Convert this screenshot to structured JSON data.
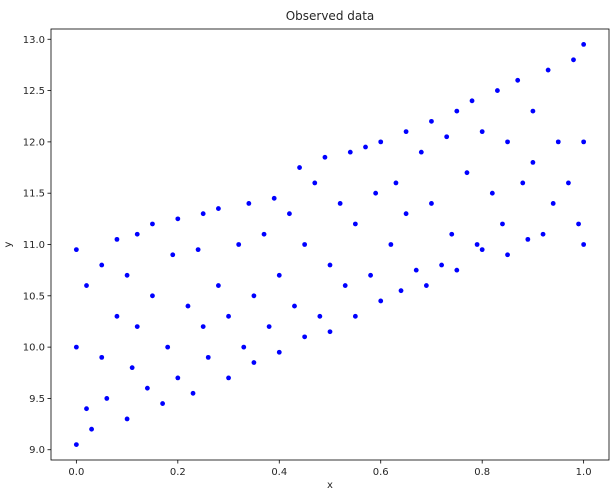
{
  "chart_data": {
    "type": "scatter",
    "title": "Observed data",
    "xlabel": "x",
    "ylabel": "y",
    "xlim": [
      -0.05,
      1.05
    ],
    "ylim": [
      8.9,
      13.1
    ],
    "x_ticks": [
      0.0,
      0.2,
      0.4,
      0.6,
      0.8,
      1.0
    ],
    "x_tick_labels": [
      "0.0",
      "0.2",
      "0.4",
      "0.6",
      "0.8",
      "1.0"
    ],
    "y_ticks": [
      9.0,
      9.5,
      10.0,
      10.5,
      11.0,
      11.5,
      12.0,
      12.5,
      13.0
    ],
    "y_tick_labels": [
      "9.0",
      "9.5",
      "10.0",
      "10.5",
      "11.0",
      "11.5",
      "12.0",
      "12.5",
      "13.0"
    ],
    "grid": false,
    "legend": "none",
    "marker_color": "#0000ff",
    "series": [
      {
        "x": [
          0.0,
          0.0,
          0.0,
          0.02,
          0.02,
          0.03,
          0.05,
          0.05,
          0.06,
          0.08,
          0.08,
          0.1,
          0.1,
          0.11,
          0.12,
          0.12,
          0.14,
          0.15,
          0.15,
          0.17,
          0.18,
          0.19,
          0.2,
          0.2,
          0.22,
          0.23,
          0.24,
          0.25,
          0.25,
          0.26,
          0.28,
          0.28,
          0.3,
          0.3,
          0.32,
          0.33,
          0.34,
          0.35,
          0.35,
          0.37,
          0.38,
          0.39,
          0.4,
          0.4,
          0.42,
          0.43,
          0.44,
          0.45,
          0.45,
          0.47,
          0.48,
          0.49,
          0.5,
          0.5,
          0.52,
          0.53,
          0.54,
          0.55,
          0.55,
          0.57,
          0.58,
          0.59,
          0.6,
          0.6,
          0.62,
          0.63,
          0.64,
          0.65,
          0.65,
          0.67,
          0.68,
          0.69,
          0.7,
          0.7,
          0.72,
          0.73,
          0.74,
          0.75,
          0.75,
          0.77,
          0.78,
          0.79,
          0.8,
          0.8,
          0.82,
          0.83,
          0.84,
          0.85,
          0.85,
          0.87,
          0.88,
          0.89,
          0.9,
          0.9,
          0.92,
          0.93,
          0.94,
          0.95,
          0.97,
          0.98,
          0.99,
          1.0,
          1.0,
          1.0
        ],
        "y": [
          9.05,
          10.0,
          10.95,
          9.4,
          10.6,
          9.2,
          9.9,
          10.8,
          9.5,
          10.3,
          11.05,
          9.3,
          10.7,
          9.8,
          10.2,
          11.1,
          9.6,
          10.5,
          11.2,
          9.45,
          10.0,
          10.9,
          9.7,
          11.25,
          10.4,
          9.55,
          10.95,
          10.2,
          11.3,
          9.9,
          10.6,
          11.35,
          9.7,
          10.3,
          11.0,
          10.0,
          11.4,
          10.5,
          9.85,
          11.1,
          10.2,
          11.45,
          9.95,
          10.7,
          11.3,
          10.4,
          11.75,
          10.1,
          11.0,
          11.6,
          10.3,
          11.85,
          10.8,
          10.15,
          11.4,
          10.6,
          11.9,
          10.3,
          11.2,
          11.95,
          10.7,
          11.5,
          10.45,
          12.0,
          11.0,
          11.6,
          10.55,
          12.1,
          11.3,
          10.75,
          11.9,
          10.6,
          12.2,
          11.4,
          10.8,
          12.05,
          11.1,
          12.3,
          10.75,
          11.7,
          12.4,
          11.0,
          12.1,
          10.95,
          11.5,
          12.5,
          11.2,
          12.0,
          10.9,
          12.6,
          11.6,
          11.05,
          12.3,
          11.8,
          11.1,
          12.7,
          11.4,
          12.0,
          11.6,
          12.8,
          11.2,
          11.0,
          12.0,
          12.95
        ]
      }
    ]
  }
}
